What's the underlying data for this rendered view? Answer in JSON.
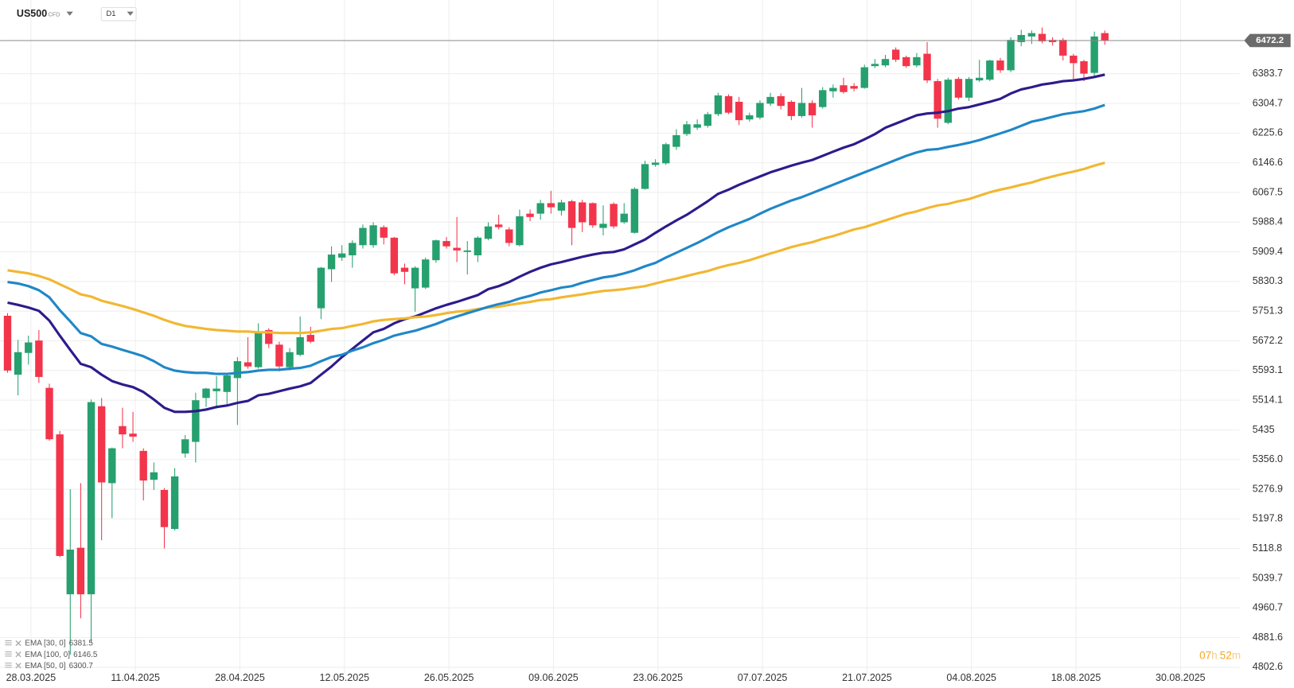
{
  "chart_data": {
    "type": "candlestick",
    "symbol": "US500",
    "instrument": "CFD",
    "timeframe": "D1",
    "countdown": {
      "hours": "07",
      "h": "h",
      "minutes": "52",
      "m": "m"
    },
    "up_color": "#26a06e",
    "down_color": "#f2354b",
    "categories": [
      null,
      null,
      "28.03.2025",
      null,
      null,
      null,
      null,
      null,
      null,
      null,
      null,
      null,
      "11.04.2025",
      null,
      null,
      null,
      null,
      null,
      null,
      null,
      null,
      null,
      "28.04.2025",
      null,
      null,
      null,
      null,
      null,
      null,
      null,
      null,
      null,
      "12.05.2025",
      null,
      null,
      null,
      null,
      null,
      null,
      null,
      null,
      null,
      "26.05.2025",
      null,
      null,
      null,
      null,
      null,
      null,
      null,
      null,
      null,
      "09.06.2025",
      null,
      null,
      null,
      null,
      null,
      null,
      null,
      null,
      null,
      "23.06.2025",
      null,
      null,
      null,
      null,
      null,
      null,
      null,
      null,
      null,
      "07.07.2025",
      null,
      null,
      null,
      null,
      null,
      null,
      null,
      null,
      null,
      "21.07.2025",
      null,
      null,
      null,
      null,
      null,
      null,
      null,
      null,
      null,
      "04.08.2025",
      null,
      null,
      null,
      null,
      null,
      null,
      null,
      null,
      null,
      "18.08.2025",
      null,
      null,
      null,
      null,
      null,
      null,
      null,
      null,
      null,
      "30.08.2025",
      null,
      null,
      null,
      null,
      null
    ],
    "open": [
      5739,
      5582,
      5640,
      5673,
      5547,
      5423,
      4997,
      5121,
      4997,
      5498,
      5293,
      5445,
      5425,
      5379,
      5302,
      5275,
      5171,
      5372,
      5403,
      5520,
      5538,
      5536,
      5573,
      5615,
      5602,
      5701,
      5662,
      5602,
      5635,
      5688,
      5759,
      5863,
      5894,
      5900,
      5927,
      5927,
      5975,
      5947,
      5867,
      5812,
      5814,
      5887,
      5938,
      5920,
      5909,
      5900,
      5944,
      5982,
      5969,
      5927,
      6011,
      6011,
      6039,
      6019,
      6044,
      6041,
      6039,
      5973,
      6037,
      5988,
      5960,
      6077,
      6141,
      6145,
      6189,
      6223,
      6240,
      6245,
      6276,
      6324,
      6309,
      6262,
      6267,
      6304,
      6324,
      6309,
      6271,
      6306,
      6295,
      6337,
      6353,
      6351,
      6346,
      6404,
      6406,
      6448,
      6428,
      6406,
      6437,
      6364,
      6253,
      6370,
      6320,
      6366,
      6368,
      6419,
      6393,
      6468,
      6483,
      6490,
      6474,
      6474,
      6432,
      6417,
      6386,
      6492,
      null,
      null,
      null,
      null,
      null,
      null,
      null,
      null,
      null,
      null,
      null,
      null
    ],
    "high": [
      5746,
      5675,
      5686,
      5701,
      5558,
      5432,
      5277,
      5293,
      5516,
      5520,
      5388,
      5494,
      5483,
      5386,
      5348,
      5280,
      5333,
      5421,
      5534,
      5547,
      5578,
      5582,
      5629,
      5682,
      5719,
      5706,
      5670,
      5653,
      5737,
      5710,
      5869,
      5924,
      5927,
      5940,
      5982,
      5988,
      5980,
      5949,
      5878,
      5871,
      5894,
      5942,
      5949,
      6002,
      5938,
      5951,
      5988,
      6008,
      5975,
      6022,
      6022,
      6048,
      6072,
      6048,
      6048,
      6048,
      6041,
      6033,
      6041,
      6039,
      6081,
      6152,
      6156,
      6200,
      6236,
      6258,
      6262,
      6282,
      6333,
      6329,
      6322,
      6280,
      6313,
      6333,
      6331,
      6313,
      6346,
      6313,
      6348,
      6355,
      6373,
      6359,
      6408,
      6423,
      6434,
      6454,
      6432,
      6439,
      6468,
      6370,
      6373,
      6375,
      6375,
      6421,
      6421,
      6426,
      6481,
      6501,
      6499,
      6507,
      6481,
      6479,
      6437,
      6421,
      6496,
      6499,
      null,
      null,
      null,
      null,
      null,
      null,
      null,
      null,
      null,
      null,
      null,
      null
    ],
    "low": [
      5587,
      5527,
      5609,
      5560,
      5406,
      5096,
      4836,
      4933,
      4869,
      5141,
      5200,
      5386,
      5403,
      5247,
      5275,
      5119,
      5167,
      5361,
      5348,
      5496,
      5492,
      5503,
      5448,
      5598,
      5598,
      5653,
      5591,
      5593,
      5631,
      5666,
      5730,
      5829,
      5885,
      5867,
      5918,
      5920,
      5929,
      5847,
      5823,
      5750,
      5810,
      5880,
      5918,
      5882,
      5849,
      5882,
      5940,
      5969,
      5924,
      5924,
      5991,
      5995,
      6011,
      6006,
      5927,
      5962,
      5973,
      5953,
      5971,
      5984,
      5958,
      6075,
      6136,
      6141,
      6181,
      6218,
      6234,
      6240,
      6271,
      6276,
      6247,
      6256,
      6262,
      6298,
      6289,
      6260,
      6267,
      6240,
      6291,
      6320,
      6331,
      6337,
      6344,
      6399,
      6401,
      6415,
      6399,
      6401,
      6359,
      6240,
      6249,
      6315,
      6311,
      6362,
      6364,
      6386,
      6388,
      6457,
      6463,
      6465,
      6459,
      6419,
      6368,
      6364,
      6377,
      6461,
      null,
      null,
      null,
      null,
      null,
      null,
      null,
      null,
      null,
      null,
      null,
      null
    ],
    "close": [
      5593,
      5642,
      5668,
      5576,
      5410,
      5099,
      5116,
      4997,
      5509,
      5295,
      5386,
      5423,
      5417,
      5300,
      5322,
      5176,
      5311,
      5410,
      5514,
      5545,
      5545,
      5580,
      5618,
      5604,
      5697,
      5664,
      5604,
      5642,
      5682,
      5670,
      5867,
      5902,
      5905,
      5933,
      5973,
      5980,
      5947,
      5852,
      5856,
      5867,
      5889,
      5940,
      5924,
      5913,
      5913,
      5947,
      5977,
      5975,
      5933,
      6004,
      6002,
      6039,
      6028,
      6041,
      5973,
      5988,
      5980,
      5984,
      5977,
      6011,
      6077,
      6143,
      6147,
      6196,
      6220,
      6249,
      6249,
      6276,
      6326,
      6280,
      6260,
      6273,
      6306,
      6322,
      6298,
      6271,
      6306,
      6273,
      6340,
      6346,
      6335,
      6344,
      6401,
      6410,
      6423,
      6421,
      6404,
      6428,
      6366,
      6264,
      6368,
      6320,
      6370,
      6373,
      6419,
      6393,
      6474,
      6487,
      6492,
      6470,
      6468,
      6432,
      6412,
      6384,
      6483,
      6472.2,
      null,
      null,
      null,
      null,
      null,
      null,
      null,
      null,
      null,
      null,
      null,
      null
    ],
    "series": [
      {
        "name": "EMA [30, 0]",
        "color": "#2d1b8c",
        "values": [
          5774,
          5768,
          5761,
          5752,
          5726,
          5686,
          5648,
          5611,
          5602,
          5582,
          5565,
          5556,
          5549,
          5536,
          5516,
          5494,
          5483,
          5483,
          5485,
          5489,
          5496,
          5500,
          5507,
          5512,
          5527,
          5531,
          5538,
          5545,
          5551,
          5560,
          5582,
          5604,
          5629,
          5651,
          5673,
          5695,
          5704,
          5719,
          5730,
          5737,
          5748,
          5759,
          5768,
          5776,
          5785,
          5794,
          5810,
          5818,
          5829,
          5843,
          5856,
          5867,
          5876,
          5882,
          5889,
          5896,
          5902,
          5907,
          5909,
          5916,
          5929,
          5942,
          5960,
          5977,
          5993,
          6008,
          6026,
          6044,
          6064,
          6075,
          6088,
          6099,
          6110,
          6121,
          6130,
          6139,
          6147,
          6154,
          6165,
          6176,
          6187,
          6196,
          6209,
          6223,
          6240,
          6251,
          6262,
          6273,
          6278,
          6280,
          6284,
          6291,
          6295,
          6302,
          6309,
          6317,
          6331,
          6342,
          6348,
          6355,
          6359,
          6364,
          6366,
          6370,
          6375,
          6381.5,
          null,
          null,
          null,
          null,
          null,
          null,
          null,
          null,
          null,
          null,
          null,
          null
        ]
      },
      {
        "name": "EMA [100, 0]",
        "color": "#f2b731",
        "values": [
          5860,
          5856,
          5852,
          5845,
          5836,
          5823,
          5810,
          5796,
          5790,
          5779,
          5772,
          5765,
          5757,
          5748,
          5739,
          5728,
          5719,
          5712,
          5708,
          5704,
          5701,
          5699,
          5697,
          5697,
          5695,
          5695,
          5693,
          5693,
          5693,
          5695,
          5699,
          5704,
          5706,
          5712,
          5717,
          5724,
          5728,
          5730,
          5732,
          5735,
          5737,
          5741,
          5746,
          5750,
          5752,
          5757,
          5761,
          5763,
          5768,
          5772,
          5776,
          5781,
          5783,
          5788,
          5792,
          5796,
          5801,
          5805,
          5807,
          5810,
          5814,
          5818,
          5825,
          5832,
          5838,
          5845,
          5852,
          5858,
          5867,
          5874,
          5880,
          5887,
          5896,
          5905,
          5913,
          5922,
          5929,
          5935,
          5944,
          5951,
          5960,
          5969,
          5975,
          5984,
          5993,
          6002,
          6011,
          6017,
          6026,
          6033,
          6037,
          6044,
          6050,
          6059,
          6068,
          6075,
          6081,
          6088,
          6094,
          6103,
          6110,
          6117,
          6123,
          6130,
          6139,
          6146.5,
          null,
          null,
          null,
          null,
          null,
          null,
          null,
          null,
          null,
          null,
          null,
          null
        ]
      },
      {
        "name": "EMA [50, 0]",
        "color": "#1f87c7",
        "values": [
          5829,
          5825,
          5818,
          5807,
          5788,
          5754,
          5724,
          5693,
          5684,
          5664,
          5657,
          5648,
          5640,
          5631,
          5618,
          5602,
          5593,
          5589,
          5587,
          5587,
          5584,
          5584,
          5587,
          5589,
          5593,
          5595,
          5595,
          5598,
          5600,
          5606,
          5618,
          5629,
          5635,
          5646,
          5655,
          5666,
          5675,
          5686,
          5693,
          5699,
          5708,
          5717,
          5728,
          5737,
          5746,
          5754,
          5763,
          5770,
          5776,
          5785,
          5792,
          5801,
          5807,
          5814,
          5818,
          5827,
          5834,
          5841,
          5845,
          5852,
          5860,
          5871,
          5880,
          5894,
          5907,
          5920,
          5933,
          5947,
          5962,
          5975,
          5986,
          5997,
          6011,
          6024,
          6035,
          6046,
          6055,
          6066,
          6077,
          6088,
          6099,
          6110,
          6121,
          6132,
          6143,
          6154,
          6165,
          6174,
          6181,
          6183,
          6189,
          6194,
          6200,
          6207,
          6216,
          6225,
          6234,
          6245,
          6256,
          6262,
          6269,
          6276,
          6280,
          6284,
          6291,
          6300.7,
          null,
          null,
          null,
          null,
          null,
          null,
          null,
          null,
          null,
          null,
          null,
          null
        ]
      }
    ],
    "ylim": [
      4787.1,
      6580.2
    ],
    "yticks": [
      4802.6,
      4881.6,
      4960.7,
      5039.7,
      5118.8,
      5197.8,
      5276.9,
      {
        "value": 5356,
        "label": "5356.0"
      },
      5435,
      5514.1,
      5593.1,
      5672.2,
      5751.3,
      5830.3,
      5909.4,
      5988.4,
      6067.5,
      6146.6,
      6225.6,
      6304.7,
      6383.7
    ],
    "grid": true
  }
}
